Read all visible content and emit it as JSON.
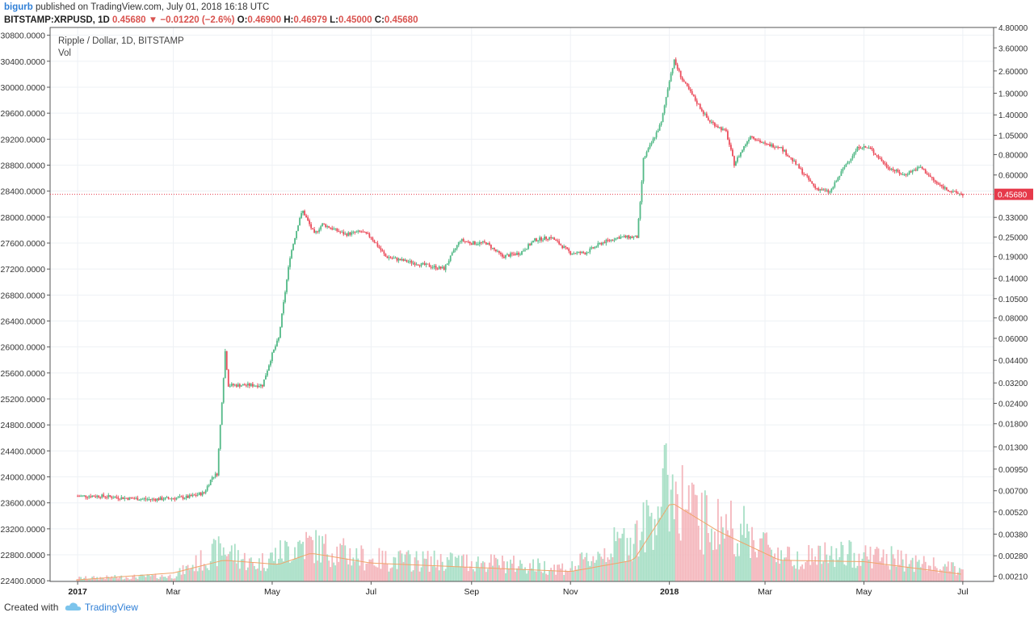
{
  "header": {
    "publisher": "bigurb",
    "published_text": "published on TradingView.com, July 01, 2018 16:18 UTC",
    "symbol": "BITSTAMP:XRPUSD, 1D",
    "last": "0.45680",
    "change_arrow": "▼",
    "change": "−0.01220 (−2.6%)",
    "open_label": "O:",
    "open": "0.46900",
    "high_label": "H:",
    "high": "0.46979",
    "low_label": "L:",
    "low": "0.45000",
    "close_label": "C:",
    "close": "0.45680"
  },
  "footer": {
    "created_with": "Created with",
    "brand": "TradingView",
    "logo_icon": "tradingview-cloud-icon"
  },
  "colors": {
    "up": "#53b987",
    "down": "#eb4d5c",
    "vol_up": "#a8dfc6",
    "vol_down": "#f4b6bc",
    "vol_ma": "#f0a46a",
    "price_line": "#e6394a",
    "grid": "#eef1f5",
    "axis_text": "#333333"
  },
  "chart_data": {
    "type": "candlestick",
    "title": "Ripple / Dollar, 1D, BITSTAMP",
    "volume_label": "Vol",
    "scale": "log",
    "ylim": [
      0.00195,
      4.8
    ],
    "last_price_label": "0.45680",
    "last_price": 0.4568,
    "x_ticks": [
      "2017",
      "Mar",
      "May",
      "Jul",
      "Sep",
      "Nov",
      "2018",
      "Mar",
      "May",
      "Jul"
    ],
    "x_range": [
      "2016-12-15",
      "2018-07-20"
    ],
    "x_tick_dates": [
      "2017-01-01",
      "2017-03-01",
      "2017-05-01",
      "2017-07-01",
      "2017-09-01",
      "2017-11-01",
      "2018-01-01",
      "2018-03-01",
      "2018-05-01",
      "2018-07-01"
    ],
    "right_ticks": [
      {
        "label": "4.80000",
        "value": 4.8
      },
      {
        "label": "3.60000",
        "value": 3.6
      },
      {
        "label": "2.60000",
        "value": 2.6
      },
      {
        "label": "1.90000",
        "value": 1.9
      },
      {
        "label": "1.40000",
        "value": 1.4
      },
      {
        "label": "1.05000",
        "value": 1.05
      },
      {
        "label": "0.80000",
        "value": 0.8
      },
      {
        "label": "0.60000",
        "value": 0.6
      },
      {
        "label": "0.33000",
        "value": 0.33
      },
      {
        "label": "0.25000",
        "value": 0.25
      },
      {
        "label": "0.19000",
        "value": 0.19
      },
      {
        "label": "0.14000",
        "value": 0.14
      },
      {
        "label": "0.10500",
        "value": 0.105
      },
      {
        "label": "0.08000",
        "value": 0.08
      },
      {
        "label": "0.06000",
        "value": 0.06
      },
      {
        "label": "0.04400",
        "value": 0.044
      },
      {
        "label": "0.03200",
        "value": 0.032
      },
      {
        "label": "0.02400",
        "value": 0.024
      },
      {
        "label": "0.01800",
        "value": 0.018
      },
      {
        "label": "0.01300",
        "value": 0.013
      },
      {
        "label": "0.00950",
        "value": 0.0095
      },
      {
        "label": "0.00700",
        "value": 0.007
      },
      {
        "label": "0.00520",
        "value": 0.0052
      },
      {
        "label": "0.00380",
        "value": 0.0038
      },
      {
        "label": "0.00280",
        "value": 0.0028
      },
      {
        "label": "0.00210",
        "value": 0.0021
      }
    ],
    "left_ticks": [
      "30800.0000",
      "30400.0000",
      "30000.0000",
      "29600.0000",
      "29200.0000",
      "28800.0000",
      "28400.0000",
      "28000.0000",
      "27600.0000",
      "27200.0000",
      "26800.0000",
      "26400.0000",
      "26000.0000",
      "25600.0000",
      "25200.0000",
      "24800.0000",
      "24400.0000",
      "24000.0000",
      "23600.0000",
      "23200.0000",
      "22800.0000",
      "22400.0000"
    ],
    "left_range": [
      22390,
      30920
    ],
    "price_path": [
      {
        "date": "2016-12-31",
        "close": 0.0065
      },
      {
        "date": "2017-01-15",
        "close": 0.0065
      },
      {
        "date": "2017-02-01",
        "close": 0.0063
      },
      {
        "date": "2017-02-15",
        "close": 0.0062
      },
      {
        "date": "2017-03-01",
        "close": 0.0063
      },
      {
        "date": "2017-03-10",
        "close": 0.0064
      },
      {
        "date": "2017-03-20",
        "close": 0.0068
      },
      {
        "date": "2017-03-25",
        "close": 0.0085
      },
      {
        "date": "2017-03-28",
        "close": 0.0089
      },
      {
        "date": "2017-04-01",
        "close": 0.035
      },
      {
        "date": "2017-04-02",
        "close": 0.05
      },
      {
        "date": "2017-04-04",
        "close": 0.031
      },
      {
        "date": "2017-04-15",
        "close": 0.031
      },
      {
        "date": "2017-04-25",
        "close": 0.031
      },
      {
        "date": "2017-05-01",
        "close": 0.048
      },
      {
        "date": "2017-05-05",
        "close": 0.06
      },
      {
        "date": "2017-05-12",
        "close": 0.19
      },
      {
        "date": "2017-05-18",
        "close": 0.33
      },
      {
        "date": "2017-05-20",
        "close": 0.36
      },
      {
        "date": "2017-05-27",
        "close": 0.26
      },
      {
        "date": "2017-06-01",
        "close": 0.3
      },
      {
        "date": "2017-06-15",
        "close": 0.26
      },
      {
        "date": "2017-06-25",
        "close": 0.27
      },
      {
        "date": "2017-07-01",
        "close": 0.25
      },
      {
        "date": "2017-07-10",
        "close": 0.19
      },
      {
        "date": "2017-07-20",
        "close": 0.18
      },
      {
        "date": "2017-08-01",
        "close": 0.17
      },
      {
        "date": "2017-08-15",
        "close": 0.16
      },
      {
        "date": "2017-08-25",
        "close": 0.24
      },
      {
        "date": "2017-09-01",
        "close": 0.23
      },
      {
        "date": "2017-09-10",
        "close": 0.23
      },
      {
        "date": "2017-09-20",
        "close": 0.19
      },
      {
        "date": "2017-10-01",
        "close": 0.2
      },
      {
        "date": "2017-10-10",
        "close": 0.24
      },
      {
        "date": "2017-10-20",
        "close": 0.25
      },
      {
        "date": "2017-11-01",
        "close": 0.2
      },
      {
        "date": "2017-11-10",
        "close": 0.2
      },
      {
        "date": "2017-11-20",
        "close": 0.23
      },
      {
        "date": "2017-12-01",
        "close": 0.25
      },
      {
        "date": "2017-12-12",
        "close": 0.25
      },
      {
        "date": "2017-12-14",
        "close": 0.4
      },
      {
        "date": "2017-12-16",
        "close": 0.75
      },
      {
        "date": "2017-12-20",
        "close": 0.9
      },
      {
        "date": "2017-12-27",
        "close": 1.25
      },
      {
        "date": "2018-01-01",
        "close": 2.3
      },
      {
        "date": "2018-01-04",
        "close": 3.0
      },
      {
        "date": "2018-01-09",
        "close": 2.3
      },
      {
        "date": "2018-01-15",
        "close": 1.85
      },
      {
        "date": "2018-01-25",
        "close": 1.3
      },
      {
        "date": "2018-02-05",
        "close": 1.1
      },
      {
        "date": "2018-02-10",
        "close": 0.7
      },
      {
        "date": "2018-02-20",
        "close": 1.05
      },
      {
        "date": "2018-03-01",
        "close": 0.92
      },
      {
        "date": "2018-03-10",
        "close": 0.9
      },
      {
        "date": "2018-03-20",
        "close": 0.7
      },
      {
        "date": "2018-04-01",
        "close": 0.5
      },
      {
        "date": "2018-04-10",
        "close": 0.47
      },
      {
        "date": "2018-04-20",
        "close": 0.7
      },
      {
        "date": "2018-04-28",
        "close": 0.9
      },
      {
        "date": "2018-05-05",
        "close": 0.87
      },
      {
        "date": "2018-05-15",
        "close": 0.68
      },
      {
        "date": "2018-05-25",
        "close": 0.6
      },
      {
        "date": "2018-06-05",
        "close": 0.67
      },
      {
        "date": "2018-06-15",
        "close": 0.53
      },
      {
        "date": "2018-06-25",
        "close": 0.47
      },
      {
        "date": "2018-07-01",
        "close": 0.4568
      }
    ],
    "volume_path": [
      {
        "date": "2016-12-31",
        "volume": 0.03
      },
      {
        "date": "2017-03-01",
        "volume": 0.05
      },
      {
        "date": "2017-04-01",
        "volume": 0.3
      },
      {
        "date": "2017-04-20",
        "volume": 0.15
      },
      {
        "date": "2017-05-20",
        "volume": 0.35
      },
      {
        "date": "2017-07-01",
        "volume": 0.2
      },
      {
        "date": "2017-09-01",
        "volume": 0.18
      },
      {
        "date": "2017-11-01",
        "volume": 0.12
      },
      {
        "date": "2017-12-15",
        "volume": 0.45
      },
      {
        "date": "2018-01-01",
        "volume": 0.9
      },
      {
        "date": "2018-01-20",
        "volume": 0.55
      },
      {
        "date": "2018-02-10",
        "volume": 0.5
      },
      {
        "date": "2018-03-15",
        "volume": 0.22
      },
      {
        "date": "2018-05-01",
        "volume": 0.25
      },
      {
        "date": "2018-07-01",
        "volume": 0.1
      }
    ],
    "volume_ma_path": [
      {
        "date": "2016-12-31",
        "volume": 0.01
      },
      {
        "date": "2017-03-01",
        "volume": 0.06
      },
      {
        "date": "2017-04-01",
        "volume": 0.15
      },
      {
        "date": "2017-05-05",
        "volume": 0.12
      },
      {
        "date": "2017-05-25",
        "volume": 0.2
      },
      {
        "date": "2017-07-01",
        "volume": 0.13
      },
      {
        "date": "2017-09-01",
        "volume": 0.1
      },
      {
        "date": "2017-11-01",
        "volume": 0.07
      },
      {
        "date": "2017-12-10",
        "volume": 0.15
      },
      {
        "date": "2018-01-02",
        "volume": 0.56
      },
      {
        "date": "2018-02-01",
        "volume": 0.35
      },
      {
        "date": "2018-03-10",
        "volume": 0.15
      },
      {
        "date": "2018-05-01",
        "volume": 0.14
      },
      {
        "date": "2018-07-01",
        "volume": 0.05
      }
    ],
    "grid": true
  }
}
